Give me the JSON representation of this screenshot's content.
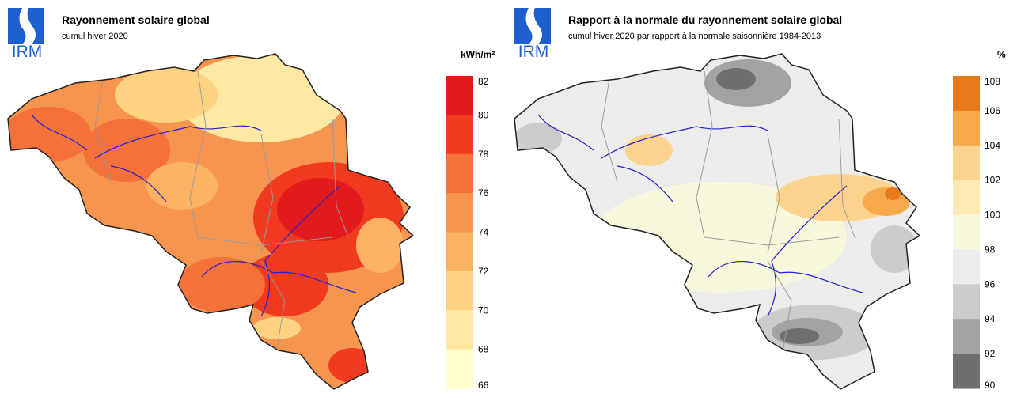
{
  "left_panel": {
    "logo_text": "IRM",
    "title": "Rayonnement solaire global",
    "subtitle": "cumul hiver 2020",
    "unit": "kWh/m²",
    "legend": {
      "ticks": [
        "82",
        "80",
        "78",
        "76",
        "74",
        "72",
        "70",
        "68",
        "66"
      ],
      "colors": [
        "#e31a1c",
        "#f03b20",
        "#f4713a",
        "#f7954e",
        "#fbb363",
        "#fdd280",
        "#fee8a4",
        "#ffffcc"
      ]
    }
  },
  "right_panel": {
    "logo_text": "IRM",
    "title": "Rapport à la normale du rayonnement solaire global",
    "subtitle": "cumul hiver 2020 par rapport à la normale saisonnière 1984-2013",
    "unit": "%",
    "legend": {
      "ticks": [
        "108",
        "106",
        "104",
        "102",
        "100",
        "98",
        "96",
        "94",
        "92",
        "90"
      ],
      "colors": [
        "#e6791e",
        "#f7a84a",
        "#fcd38e",
        "#fee9b3",
        "#f8f8dc",
        "#ececec",
        "#cccccc",
        "#a3a3a3",
        "#6f6f6f"
      ]
    }
  }
}
